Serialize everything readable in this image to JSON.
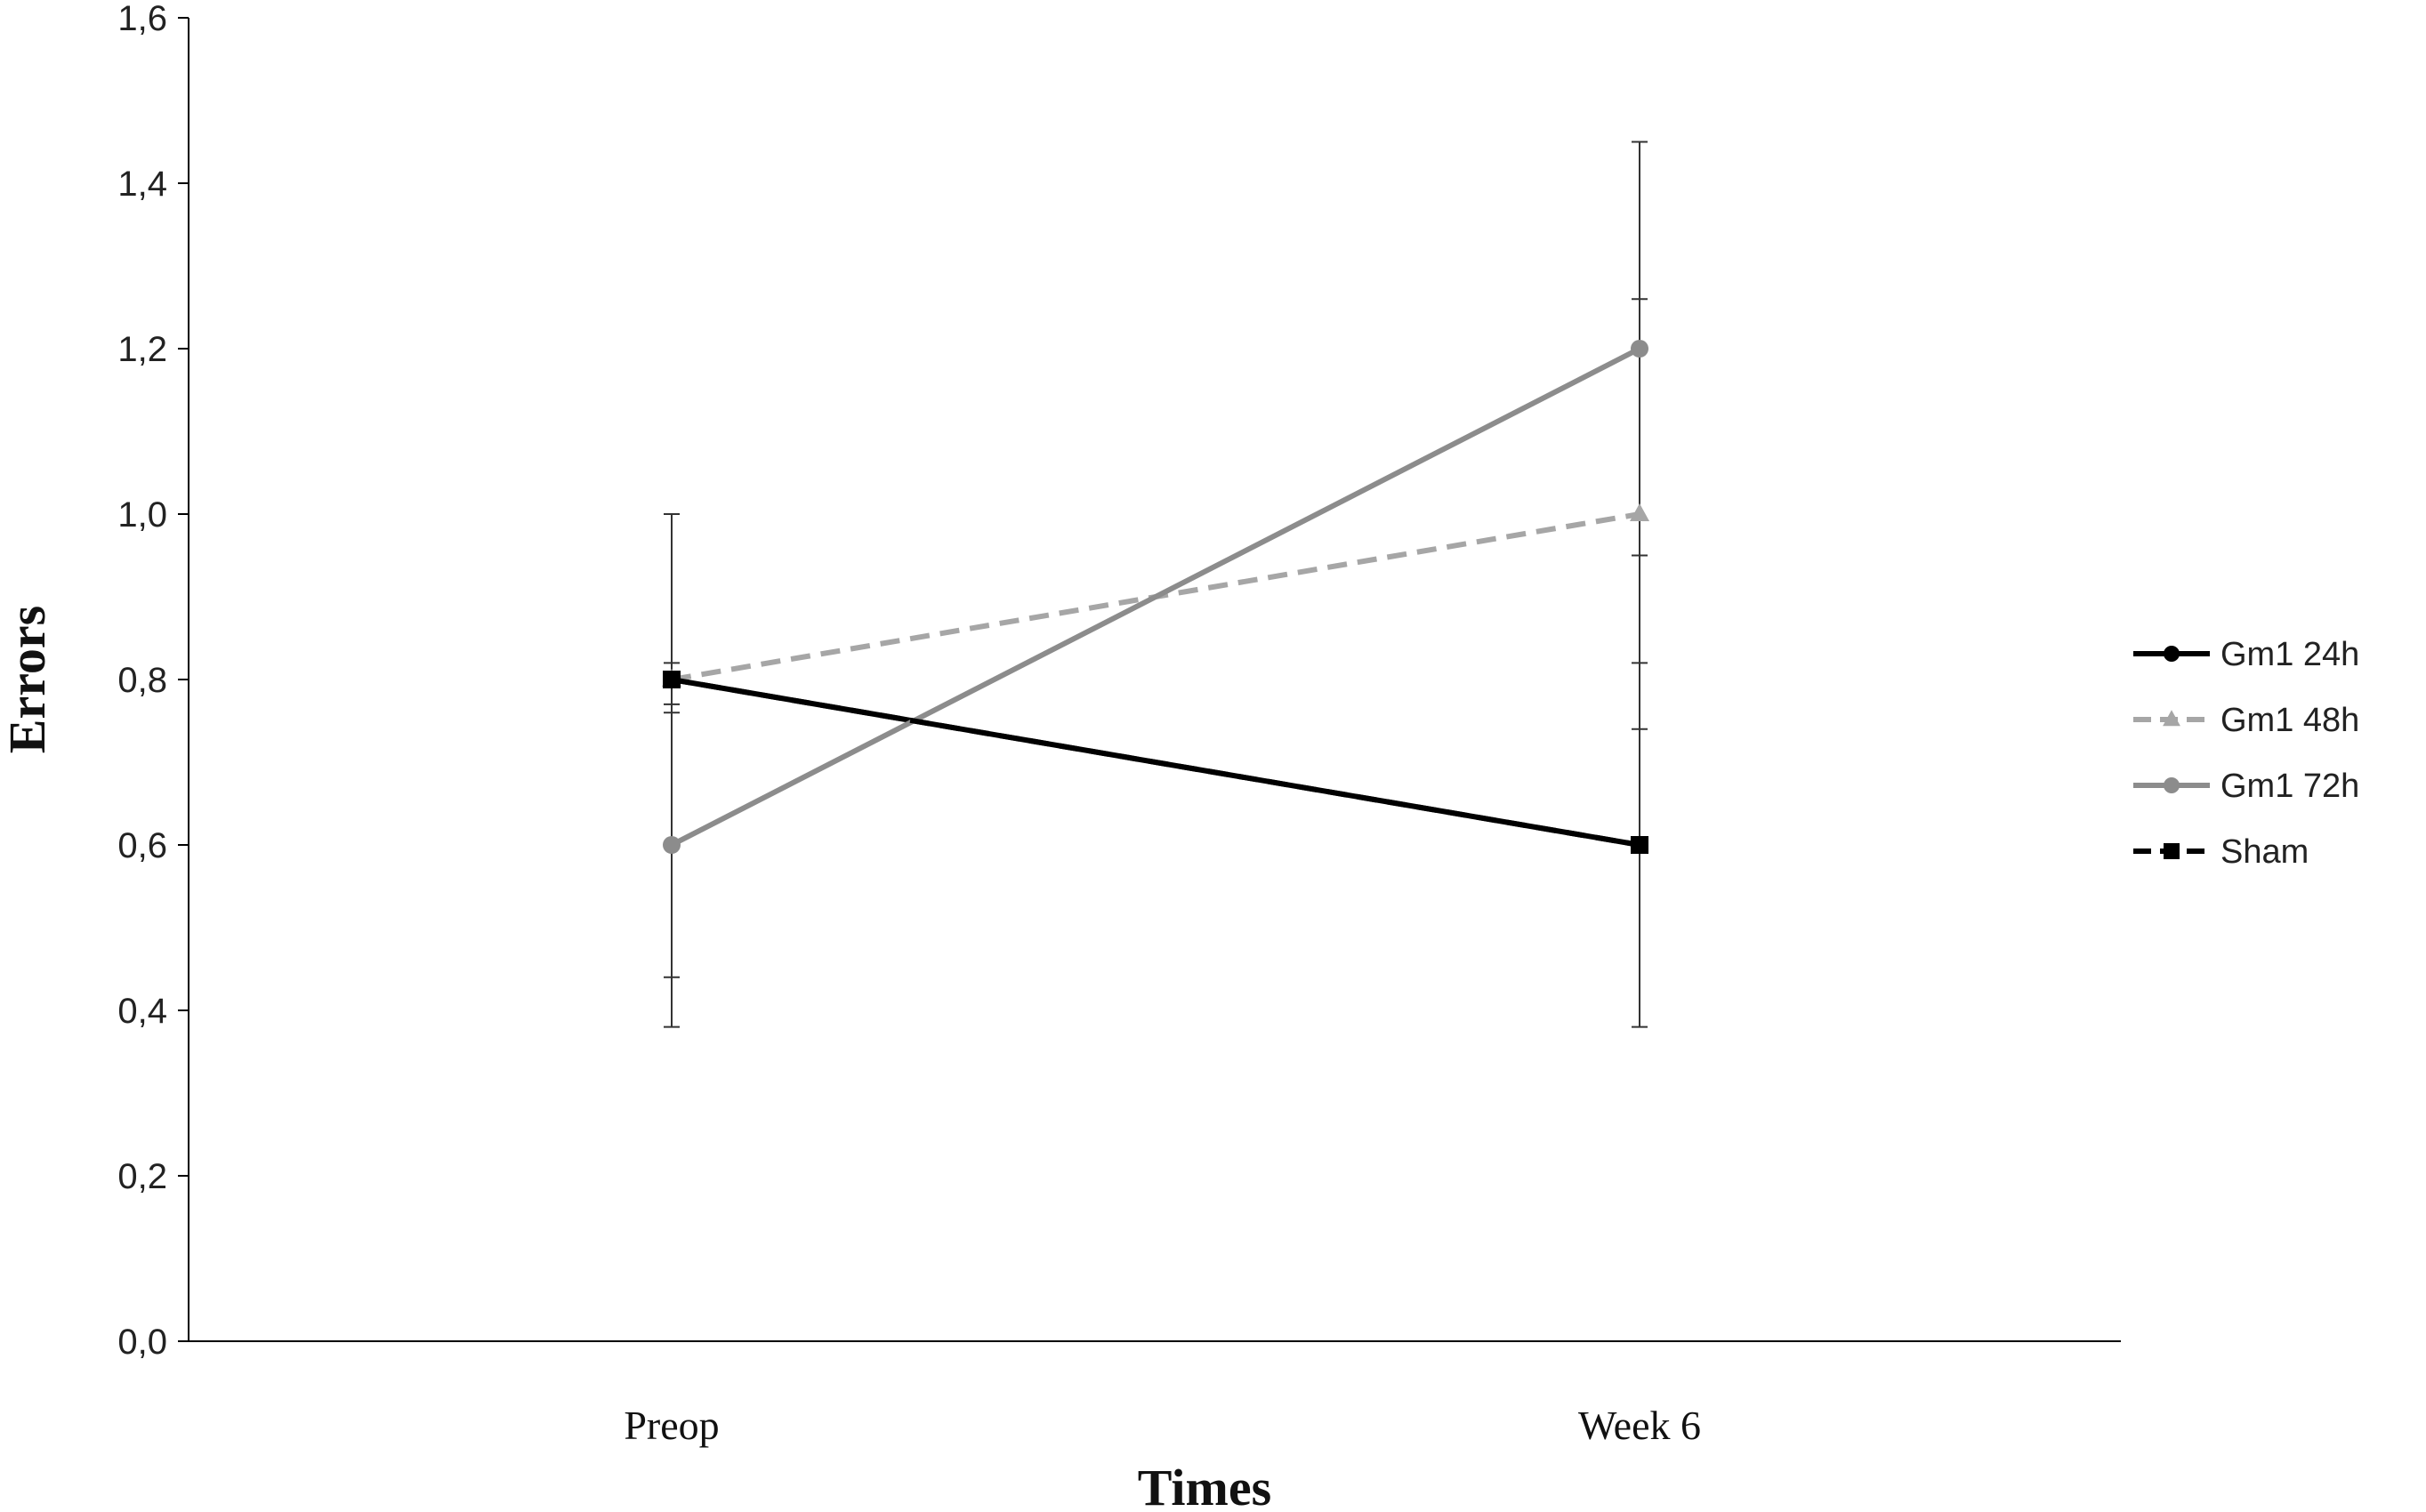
{
  "chart_data": {
    "type": "line",
    "title": "",
    "xlabel": "Times",
    "ylabel": "Errors",
    "categories": [
      "Preop",
      "Week 6"
    ],
    "ylim": [
      0,
      1.6
    ],
    "yticks": [
      "0,0",
      "0,2",
      "0,4",
      "0,6",
      "0,8",
      "1,0",
      "1,2",
      "1,4",
      "1,6"
    ],
    "grid": false,
    "legend_position": "right",
    "series": [
      {
        "name": "Gm1 24h",
        "values": [
          0.8,
          0.6
        ],
        "error_low": [
          0.38,
          0.38
        ],
        "error_high": [
          1.0,
          0.82
        ],
        "color": "#000000",
        "dashed": false,
        "marker": "circle"
      },
      {
        "name": "Gm1 48h",
        "values": [
          0.8,
          1.0
        ],
        "error_low": [
          0.76,
          0.74
        ],
        "error_high": [
          0.82,
          1.26
        ],
        "color": "#a6a6a6",
        "dashed": true,
        "marker": "triangle"
      },
      {
        "name": "Gm1 72h",
        "values": [
          0.6,
          1.2
        ],
        "error_low": [
          0.44,
          0.95
        ],
        "error_high": [
          0.77,
          1.45
        ],
        "color": "#8c8c8c",
        "dashed": false,
        "marker": "circle"
      },
      {
        "name": "Sham",
        "values": [
          0.8,
          0.6
        ],
        "error_low": [
          0.8,
          0.6
        ],
        "error_high": [
          0.8,
          0.6
        ],
        "color": "#000000",
        "dashed": true,
        "marker": "square"
      }
    ]
  }
}
